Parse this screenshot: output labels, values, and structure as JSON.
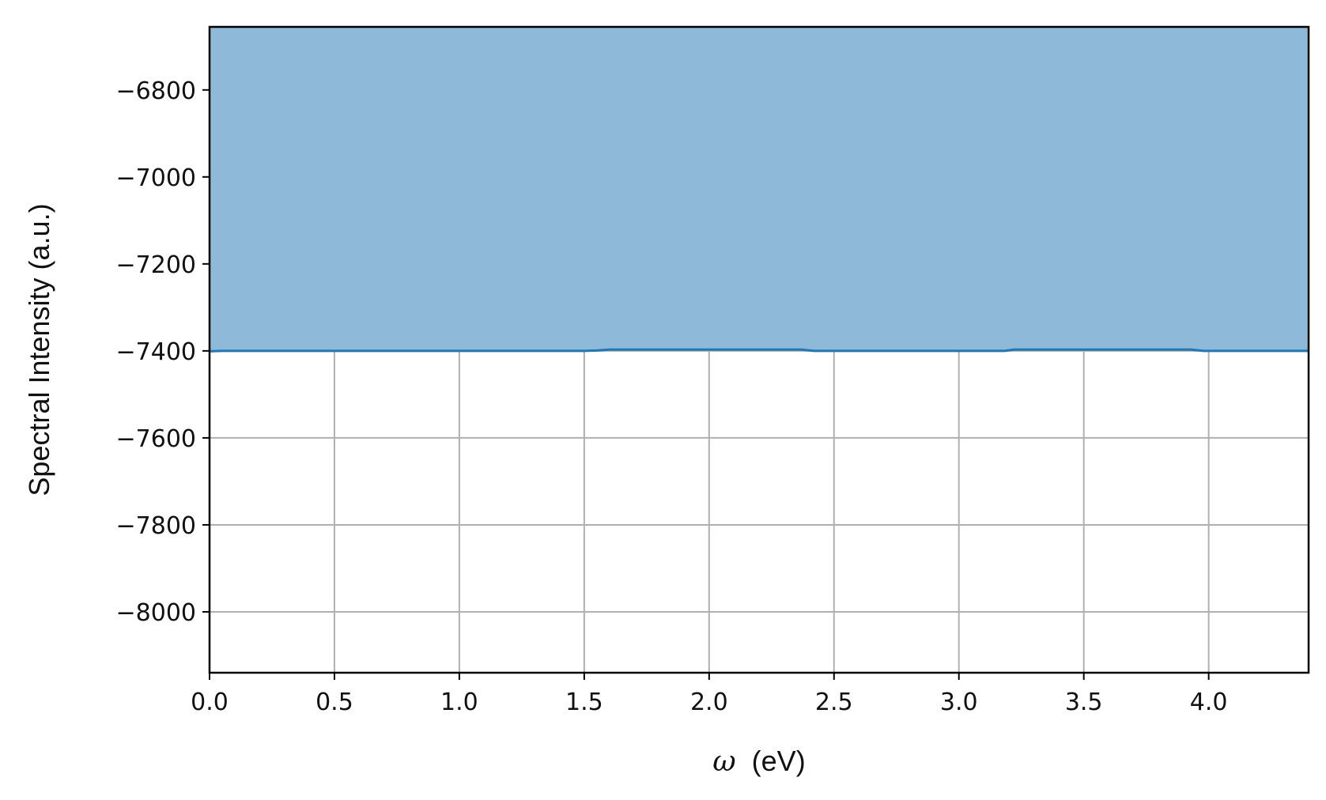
{
  "chart_data": {
    "type": "area",
    "title": "",
    "xlabel": "(eV)",
    "xlabel_symbol": "ω",
    "ylabel": "Spectral Intensity (a.u.)",
    "xlim": [
      0.0,
      4.4
    ],
    "ylim": [
      -8140,
      -6655
    ],
    "x_ticks": [
      0.0,
      0.5,
      1.0,
      1.5,
      2.0,
      2.5,
      3.0,
      3.5,
      4.0
    ],
    "x_tick_labels": [
      "0.0",
      "0.5",
      "1.0",
      "1.5",
      "2.0",
      "2.5",
      "3.0",
      "3.5",
      "4.0"
    ],
    "y_ticks": [
      -6800,
      -7000,
      -7200,
      -7400,
      -7600,
      -7800,
      -8000
    ],
    "y_tick_labels": [
      "−6800",
      "−7000",
      "−7200",
      "−7400",
      "−7600",
      "−7800",
      "−8000"
    ],
    "grid": true,
    "fill_direction": "above-line",
    "series": [
      {
        "x": [
          0.0,
          0.05,
          1.5,
          1.55,
          1.6,
          2.37,
          2.42,
          3.18,
          3.22,
          3.93,
          3.98,
          4.4
        ],
        "y": [
          -7401,
          -7400,
          -7400,
          -7399,
          -7397,
          -7397,
          -7400,
          -7400,
          -7397,
          -7397,
          -7400,
          -7400
        ]
      }
    ],
    "colors": {
      "line": "#1f77b4",
      "fill": "#8fb9d8",
      "grid": "#b0b0b0",
      "axes": "#000000"
    }
  }
}
